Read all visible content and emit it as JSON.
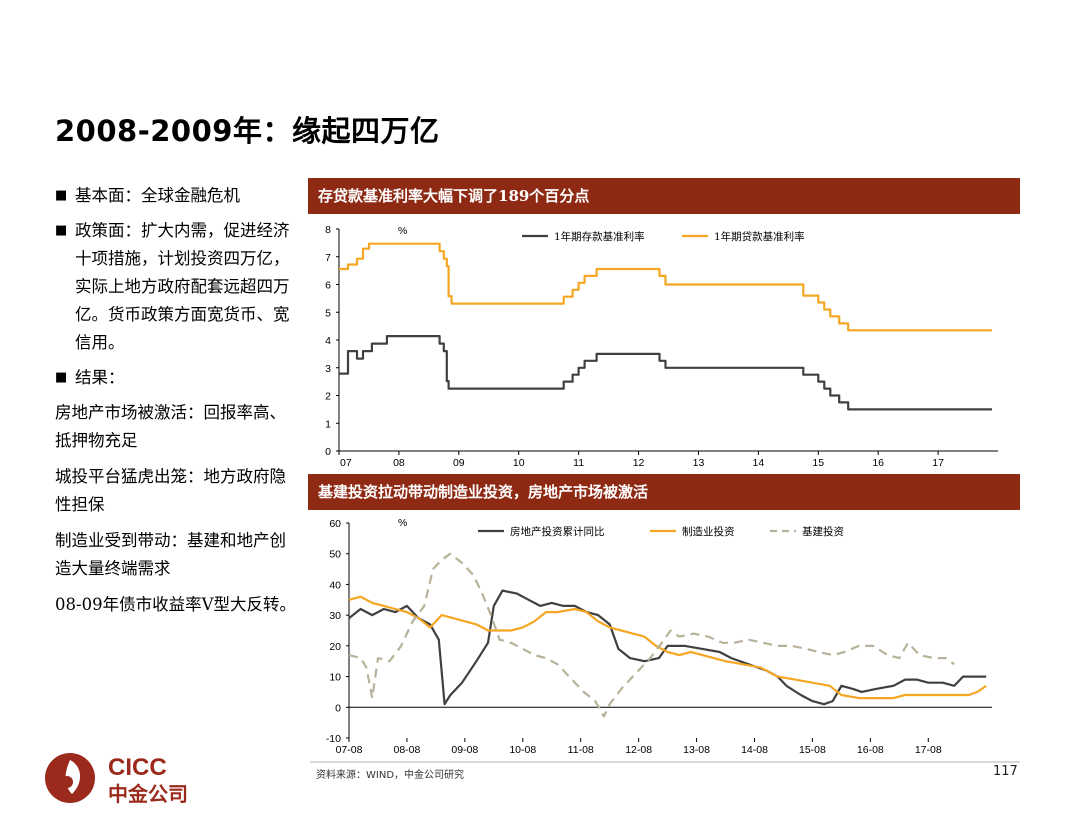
{
  "page": {
    "title": "2008-2009年：缘起四万亿",
    "bullets": [
      "基本面：全球金融危机",
      "政策面：扩大内需，促进经济十项措施，计划投资四万亿，实际上地方政府配套远超四万亿。货币政策方面宽货币、宽信用。",
      "结果："
    ],
    "results": [
      "房地产市场被激活：回报率高、抵押物充足",
      "城投平台猛虎出笼：地方政府隐性担保",
      "制造业受到带动：基建和地产创造大量终端需求",
      "08-09年债市收益率V型大反转。"
    ],
    "bullet_mark": "■",
    "source": "资料来源：WIND，中金公司研究",
    "page_number": "117",
    "logo": {
      "text": "CICC",
      "subtext": "中金公司",
      "color": "#9b2a1c"
    },
    "colors": {
      "header_bg": "#8e2a14",
      "series_dark": "#404040",
      "series_orange": "#f5a623",
      "series_khaki": "#b8b29a"
    }
  },
  "chart_data": [
    {
      "type": "line",
      "header": "存贷款基准利率大幅下调了189个百分点",
      "unit_label": "%",
      "ylim": [
        0,
        8
      ],
      "yticks": [
        0,
        1,
        2,
        3,
        4,
        5,
        6,
        7,
        8
      ],
      "xlim": [
        2007.0,
        2018.0
      ],
      "xticks": [
        {
          "label": "07",
          "x": 2007
        },
        {
          "label": "08",
          "x": 2008
        },
        {
          "label": "09",
          "x": 2009
        },
        {
          "label": "10",
          "x": 2010
        },
        {
          "label": "11",
          "x": 2011
        },
        {
          "label": "12",
          "x": 2012
        },
        {
          "label": "13",
          "x": 2013
        },
        {
          "label": "14",
          "x": 2014
        },
        {
          "label": "15",
          "x": 2015
        },
        {
          "label": "16",
          "x": 2016
        },
        {
          "label": "17",
          "x": 2017
        }
      ],
      "grid": false,
      "legend_position": "top-right",
      "step": true,
      "series": [
        {
          "name": "1年期存款基准利率",
          "color": "#404040",
          "points": [
            [
              2007.0,
              2.79
            ],
            [
              2007.15,
              3.6
            ],
            [
              2007.3,
              3.33
            ],
            [
              2007.4,
              3.6
            ],
            [
              2007.45,
              3.6
            ],
            [
              2007.55,
              3.87
            ],
            [
              2007.8,
              4.14
            ],
            [
              2008.55,
              4.14
            ],
            [
              2008.68,
              3.87
            ],
            [
              2008.75,
              3.6
            ],
            [
              2008.8,
              2.52
            ],
            [
              2008.83,
              2.25
            ],
            [
              2010.6,
              2.25
            ],
            [
              2010.75,
              2.5
            ],
            [
              2010.9,
              2.75
            ],
            [
              2011.0,
              3.0
            ],
            [
              2011.1,
              3.25
            ],
            [
              2011.3,
              3.5
            ],
            [
              2012.3,
              3.5
            ],
            [
              2012.35,
              3.25
            ],
            [
              2012.45,
              3.0
            ],
            [
              2014.65,
              3.0
            ],
            [
              2014.75,
              2.75
            ],
            [
              2015.0,
              2.5
            ],
            [
              2015.1,
              2.25
            ],
            [
              2015.2,
              2.0
            ],
            [
              2015.35,
              1.75
            ],
            [
              2015.5,
              1.5
            ],
            [
              2017.9,
              1.5
            ]
          ]
        },
        {
          "name": "1年期贷款基准利率",
          "color": "#f5a623",
          "points": [
            [
              2007.0,
              6.56
            ],
            [
              2007.15,
              6.72
            ],
            [
              2007.3,
              6.93
            ],
            [
              2007.4,
              7.29
            ],
            [
              2007.5,
              7.47
            ],
            [
              2007.8,
              7.47
            ],
            [
              2008.55,
              7.47
            ],
            [
              2008.68,
              7.2
            ],
            [
              2008.75,
              6.93
            ],
            [
              2008.8,
              6.66
            ],
            [
              2008.83,
              5.58
            ],
            [
              2008.88,
              5.31
            ],
            [
              2010.6,
              5.31
            ],
            [
              2010.75,
              5.56
            ],
            [
              2010.9,
              5.81
            ],
            [
              2011.0,
              6.06
            ],
            [
              2011.1,
              6.31
            ],
            [
              2011.3,
              6.56
            ],
            [
              2012.3,
              6.56
            ],
            [
              2012.35,
              6.31
            ],
            [
              2012.45,
              6.0
            ],
            [
              2014.65,
              6.0
            ],
            [
              2014.75,
              5.6
            ],
            [
              2015.0,
              5.35
            ],
            [
              2015.1,
              5.1
            ],
            [
              2015.2,
              4.85
            ],
            [
              2015.35,
              4.6
            ],
            [
              2015.5,
              4.35
            ],
            [
              2017.9,
              4.35
            ]
          ]
        }
      ]
    },
    {
      "type": "line",
      "header": "基建投资拉动带动制造业投资，房地产市场被激活",
      "unit_label": "%",
      "ylim": [
        -10,
        60
      ],
      "yticks": [
        -10,
        0,
        10,
        20,
        30,
        40,
        50,
        60
      ],
      "xlim": [
        2007.5,
        2018.6
      ],
      "xticks": [
        {
          "label": "07-08",
          "x": 2007.5
        },
        {
          "label": "08-08",
          "x": 2008.5
        },
        {
          "label": "09-08",
          "x": 2009.5
        },
        {
          "label": "10-08",
          "x": 2010.5
        },
        {
          "label": "11-08",
          "x": 2011.5
        },
        {
          "label": "12-08",
          "x": 2012.5
        },
        {
          "label": "13-08",
          "x": 2013.5
        },
        {
          "label": "14-08",
          "x": 2014.5
        },
        {
          "label": "15-08",
          "x": 2015.5
        },
        {
          "label": "16-08",
          "x": 2016.5
        },
        {
          "label": "17-08",
          "x": 2017.5
        }
      ],
      "grid": false,
      "legend_position": "top",
      "series": [
        {
          "name": "房地产投资累计同比",
          "color": "#404040",
          "style": "solid",
          "points": [
            [
              2007.5,
              29
            ],
            [
              2007.7,
              32
            ],
            [
              2007.9,
              30
            ],
            [
              2008.1,
              32
            ],
            [
              2008.3,
              31
            ],
            [
              2008.5,
              33
            ],
            [
              2008.7,
              29
            ],
            [
              2008.9,
              27
            ],
            [
              2009.05,
              22
            ],
            [
              2009.15,
              1
            ],
            [
              2009.25,
              4
            ],
            [
              2009.45,
              8
            ],
            [
              2009.7,
              15
            ],
            [
              2009.9,
              21
            ],
            [
              2010.0,
              33
            ],
            [
              2010.15,
              38
            ],
            [
              2010.4,
              37
            ],
            [
              2010.6,
              35
            ],
            [
              2010.8,
              33
            ],
            [
              2011.0,
              34
            ],
            [
              2011.2,
              33
            ],
            [
              2011.4,
              33
            ],
            [
              2011.6,
              31
            ],
            [
              2011.8,
              30
            ],
            [
              2012.0,
              27
            ],
            [
              2012.15,
              19
            ],
            [
              2012.35,
              16
            ],
            [
              2012.6,
              15
            ],
            [
              2012.85,
              16
            ],
            [
              2013.0,
              20
            ],
            [
              2013.3,
              20
            ],
            [
              2013.6,
              19
            ],
            [
              2013.9,
              18
            ],
            [
              2014.1,
              16
            ],
            [
              2014.4,
              14
            ],
            [
              2014.7,
              12
            ],
            [
              2014.9,
              10
            ],
            [
              2015.05,
              7
            ],
            [
              2015.3,
              4
            ],
            [
              2015.5,
              2
            ],
            [
              2015.7,
              1
            ],
            [
              2015.85,
              2
            ],
            [
              2016.0,
              7
            ],
            [
              2016.2,
              6
            ],
            [
              2016.35,
              5
            ],
            [
              2016.6,
              6
            ],
            [
              2016.9,
              7
            ],
            [
              2017.1,
              9
            ],
            [
              2017.3,
              9
            ],
            [
              2017.5,
              8
            ],
            [
              2017.75,
              8
            ],
            [
              2017.95,
              7
            ],
            [
              2018.1,
              10
            ],
            [
              2018.3,
              10
            ],
            [
              2018.5,
              10
            ]
          ]
        },
        {
          "name": "制造业投资",
          "color": "#f5a623",
          "style": "solid",
          "points": [
            [
              2007.5,
              35
            ],
            [
              2007.7,
              36
            ],
            [
              2007.9,
              34
            ],
            [
              2008.1,
              33
            ],
            [
              2008.3,
              32
            ],
            [
              2008.5,
              31
            ],
            [
              2008.7,
              29
            ],
            [
              2008.9,
              26
            ],
            [
              2009.1,
              30
            ],
            [
              2009.3,
              29
            ],
            [
              2009.5,
              28
            ],
            [
              2009.7,
              27
            ],
            [
              2009.9,
              25
            ],
            [
              2010.1,
              25
            ],
            [
              2010.3,
              25
            ],
            [
              2010.5,
              26
            ],
            [
              2010.7,
              28
            ],
            [
              2010.9,
              31
            ],
            [
              2011.1,
              31
            ],
            [
              2011.4,
              32
            ],
            [
              2011.6,
              31
            ],
            [
              2011.8,
              28
            ],
            [
              2012.0,
              26
            ],
            [
              2012.2,
              25
            ],
            [
              2012.4,
              24
            ],
            [
              2012.6,
              23
            ],
            [
              2012.8,
              20
            ],
            [
              2013.0,
              18
            ],
            [
              2013.2,
              17
            ],
            [
              2013.4,
              18
            ],
            [
              2013.6,
              17
            ],
            [
              2013.8,
              16
            ],
            [
              2014.0,
              15
            ],
            [
              2014.3,
              14
            ],
            [
              2014.6,
              13
            ],
            [
              2014.9,
              10
            ],
            [
              2015.2,
              9
            ],
            [
              2015.5,
              8
            ],
            [
              2015.8,
              7
            ],
            [
              2016.0,
              4
            ],
            [
              2016.3,
              3
            ],
            [
              2016.6,
              3
            ],
            [
              2016.9,
              3
            ],
            [
              2017.1,
              4
            ],
            [
              2017.4,
              4
            ],
            [
              2017.7,
              4
            ],
            [
              2018.0,
              4
            ],
            [
              2018.2,
              4
            ],
            [
              2018.35,
              5
            ],
            [
              2018.5,
              7
            ]
          ]
        },
        {
          "name": "基建投资",
          "color": "#b8b29a",
          "style": "dashed",
          "points": [
            [
              2007.5,
              17
            ],
            [
              2007.7,
              16
            ],
            [
              2007.8,
              13
            ],
            [
              2007.9,
              3
            ],
            [
              2008.0,
              16
            ],
            [
              2008.2,
              15
            ],
            [
              2008.4,
              20
            ],
            [
              2008.6,
              28
            ],
            [
              2008.8,
              33
            ],
            [
              2008.95,
              45
            ],
            [
              2009.1,
              48
            ],
            [
              2009.25,
              50
            ],
            [
              2009.45,
              47
            ],
            [
              2009.65,
              43
            ],
            [
              2009.8,
              37
            ],
            [
              2009.95,
              30
            ],
            [
              2010.1,
              22
            ],
            [
              2010.3,
              21
            ],
            [
              2010.5,
              19
            ],
            [
              2010.7,
              17
            ],
            [
              2010.9,
              16
            ],
            [
              2011.1,
              14
            ],
            [
              2011.35,
              9
            ],
            [
              2011.55,
              5
            ],
            [
              2011.75,
              2
            ],
            [
              2011.9,
              -3
            ],
            [
              2012.0,
              1
            ],
            [
              2012.2,
              6
            ],
            [
              2012.45,
              11
            ],
            [
              2012.7,
              16
            ],
            [
              2012.9,
              21
            ],
            [
              2013.05,
              25
            ],
            [
              2013.2,
              23
            ],
            [
              2013.45,
              24
            ],
            [
              2013.7,
              23
            ],
            [
              2013.95,
              21
            ],
            [
              2014.15,
              21
            ],
            [
              2014.4,
              22
            ],
            [
              2014.65,
              21
            ],
            [
              2014.9,
              20
            ],
            [
              2015.15,
              20
            ],
            [
              2015.4,
              19
            ],
            [
              2015.6,
              18
            ],
            [
              2015.85,
              17
            ],
            [
              2016.05,
              18
            ],
            [
              2016.3,
              20
            ],
            [
              2016.55,
              20
            ],
            [
              2016.8,
              17
            ],
            [
              2017.0,
              16
            ],
            [
              2017.15,
              21
            ],
            [
              2017.35,
              17
            ],
            [
              2017.6,
              16
            ],
            [
              2017.8,
              16
            ],
            [
              2017.95,
              14
            ]
          ]
        }
      ]
    }
  ]
}
